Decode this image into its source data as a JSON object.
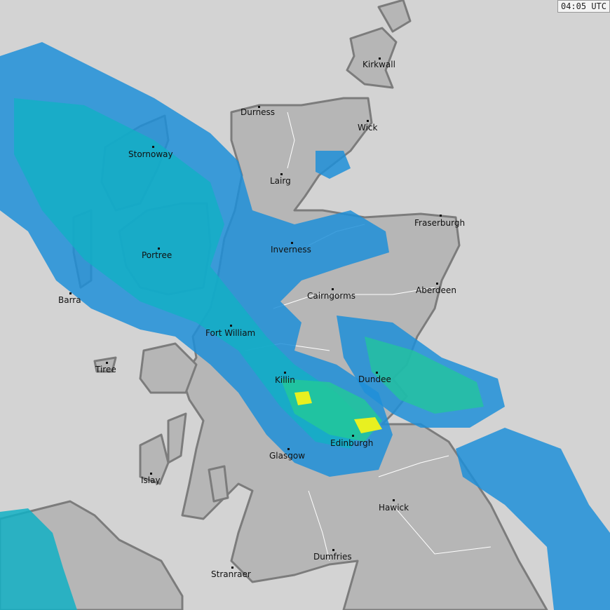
{
  "timestamp": "04:05 UTC",
  "colors": {
    "sea": "#d3d3d3",
    "land": "#b6b6b6",
    "coast": "#7c7c7c",
    "rain_light": "#1e8fd8",
    "rain_moderate": "#12b0c4",
    "rain_heavy": "#22c79a",
    "rain_intense": "#e8f020"
  },
  "cities": [
    "Kirkwall",
    "Durness",
    "Wick",
    "Stornoway",
    "Lairg",
    "Fraserburgh",
    "Inverness",
    "Portree",
    "Aberdeen",
    "Cairngorms",
    "Barra",
    "Fort William",
    "Tiree",
    "Killin",
    "Dundee",
    "Edinburgh",
    "Glasgow",
    "Islay",
    "Hawick",
    "Dumfries",
    "Stranraer"
  ]
}
